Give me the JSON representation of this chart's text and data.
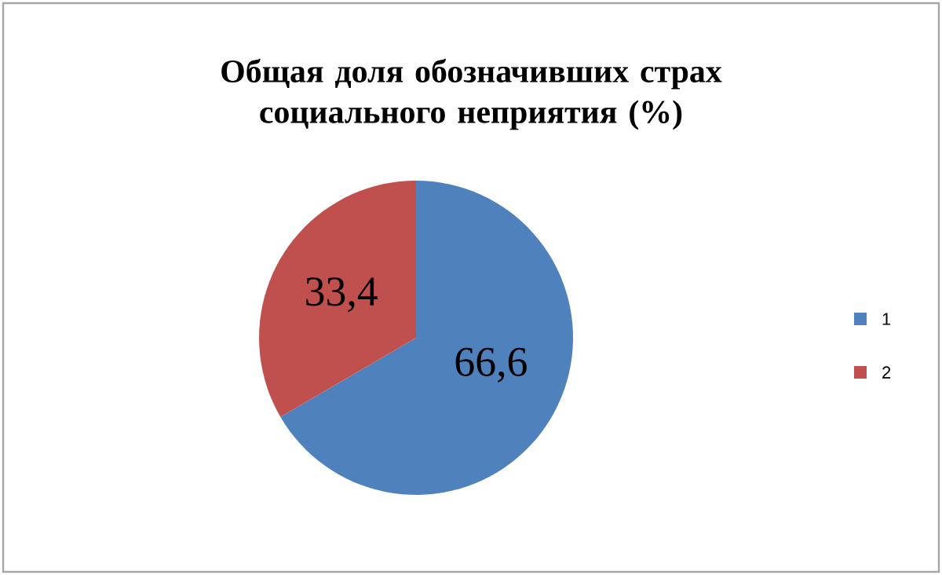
{
  "chart_data": {
    "type": "pie",
    "title": "Общая доля обозначивших страх социального неприятия (%)",
    "categories": [
      "1",
      "2"
    ],
    "values": [
      66.6,
      33.4
    ],
    "colors": [
      "#4f81bd",
      "#c0504d"
    ],
    "value_labels": [
      "66,6",
      "33,4"
    ],
    "legend": "right"
  }
}
